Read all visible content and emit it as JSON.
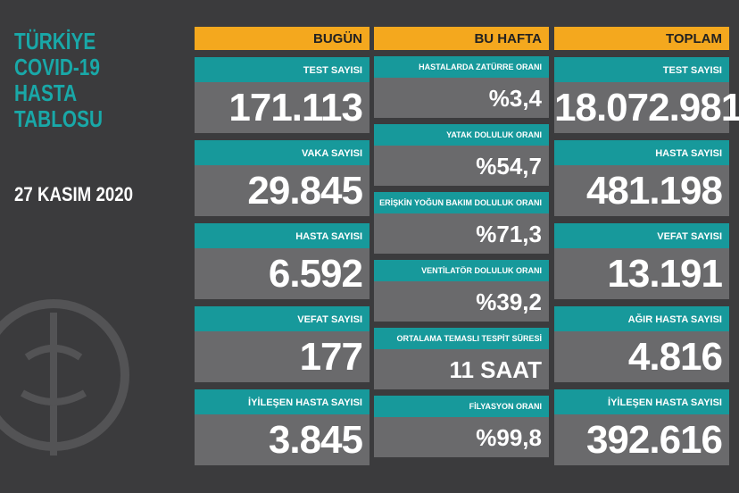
{
  "title": [
    "TÜRKİYE",
    "COVID-19",
    "HASTA",
    "TABLOSU"
  ],
  "date": "27 KASIM 2020",
  "today": {
    "header": "BUGÜN",
    "items": [
      {
        "label": "TEST SAYISI",
        "value": "171.113"
      },
      {
        "label": "VAKA SAYISI",
        "value": "29.845"
      },
      {
        "label": "HASTA SAYISI",
        "value": "6.592"
      },
      {
        "label": "VEFAT SAYISI",
        "value": "177"
      },
      {
        "label": "İYİLEŞEN HASTA SAYISI",
        "value": "3.845"
      }
    ]
  },
  "week": {
    "header": "BU HAFTA",
    "items": [
      {
        "label": "HASTALARDA ZATÜRRE ORANI",
        "value": "%3,4"
      },
      {
        "label": "YATAK DOLULUK ORANI",
        "value": "%54,7"
      },
      {
        "label": "ERİŞKİN YOĞUN BAKIM DOLULUK ORANI",
        "value": "%71,3"
      },
      {
        "label": "VENTİLATÖR DOLULUK ORANI",
        "value": "%39,2"
      },
      {
        "label": "ORTALAMA TEMASLI TESPİT SÜRESİ",
        "value": "11 SAAT"
      },
      {
        "label": "FİLYASYON ORANI",
        "value": "%99,8"
      }
    ]
  },
  "total": {
    "header": "TOPLAM",
    "items": [
      {
        "label": "TEST SAYISI",
        "value": "18.072.981"
      },
      {
        "label": "HASTA SAYISI",
        "value": "481.198"
      },
      {
        "label": "VEFAT SAYISI",
        "value": "13.191"
      },
      {
        "label": "AĞIR HASTA SAYISI",
        "value": "4.816"
      },
      {
        "label": "İYİLEŞEN HASTA SAYISI",
        "value": "392.616"
      }
    ]
  }
}
